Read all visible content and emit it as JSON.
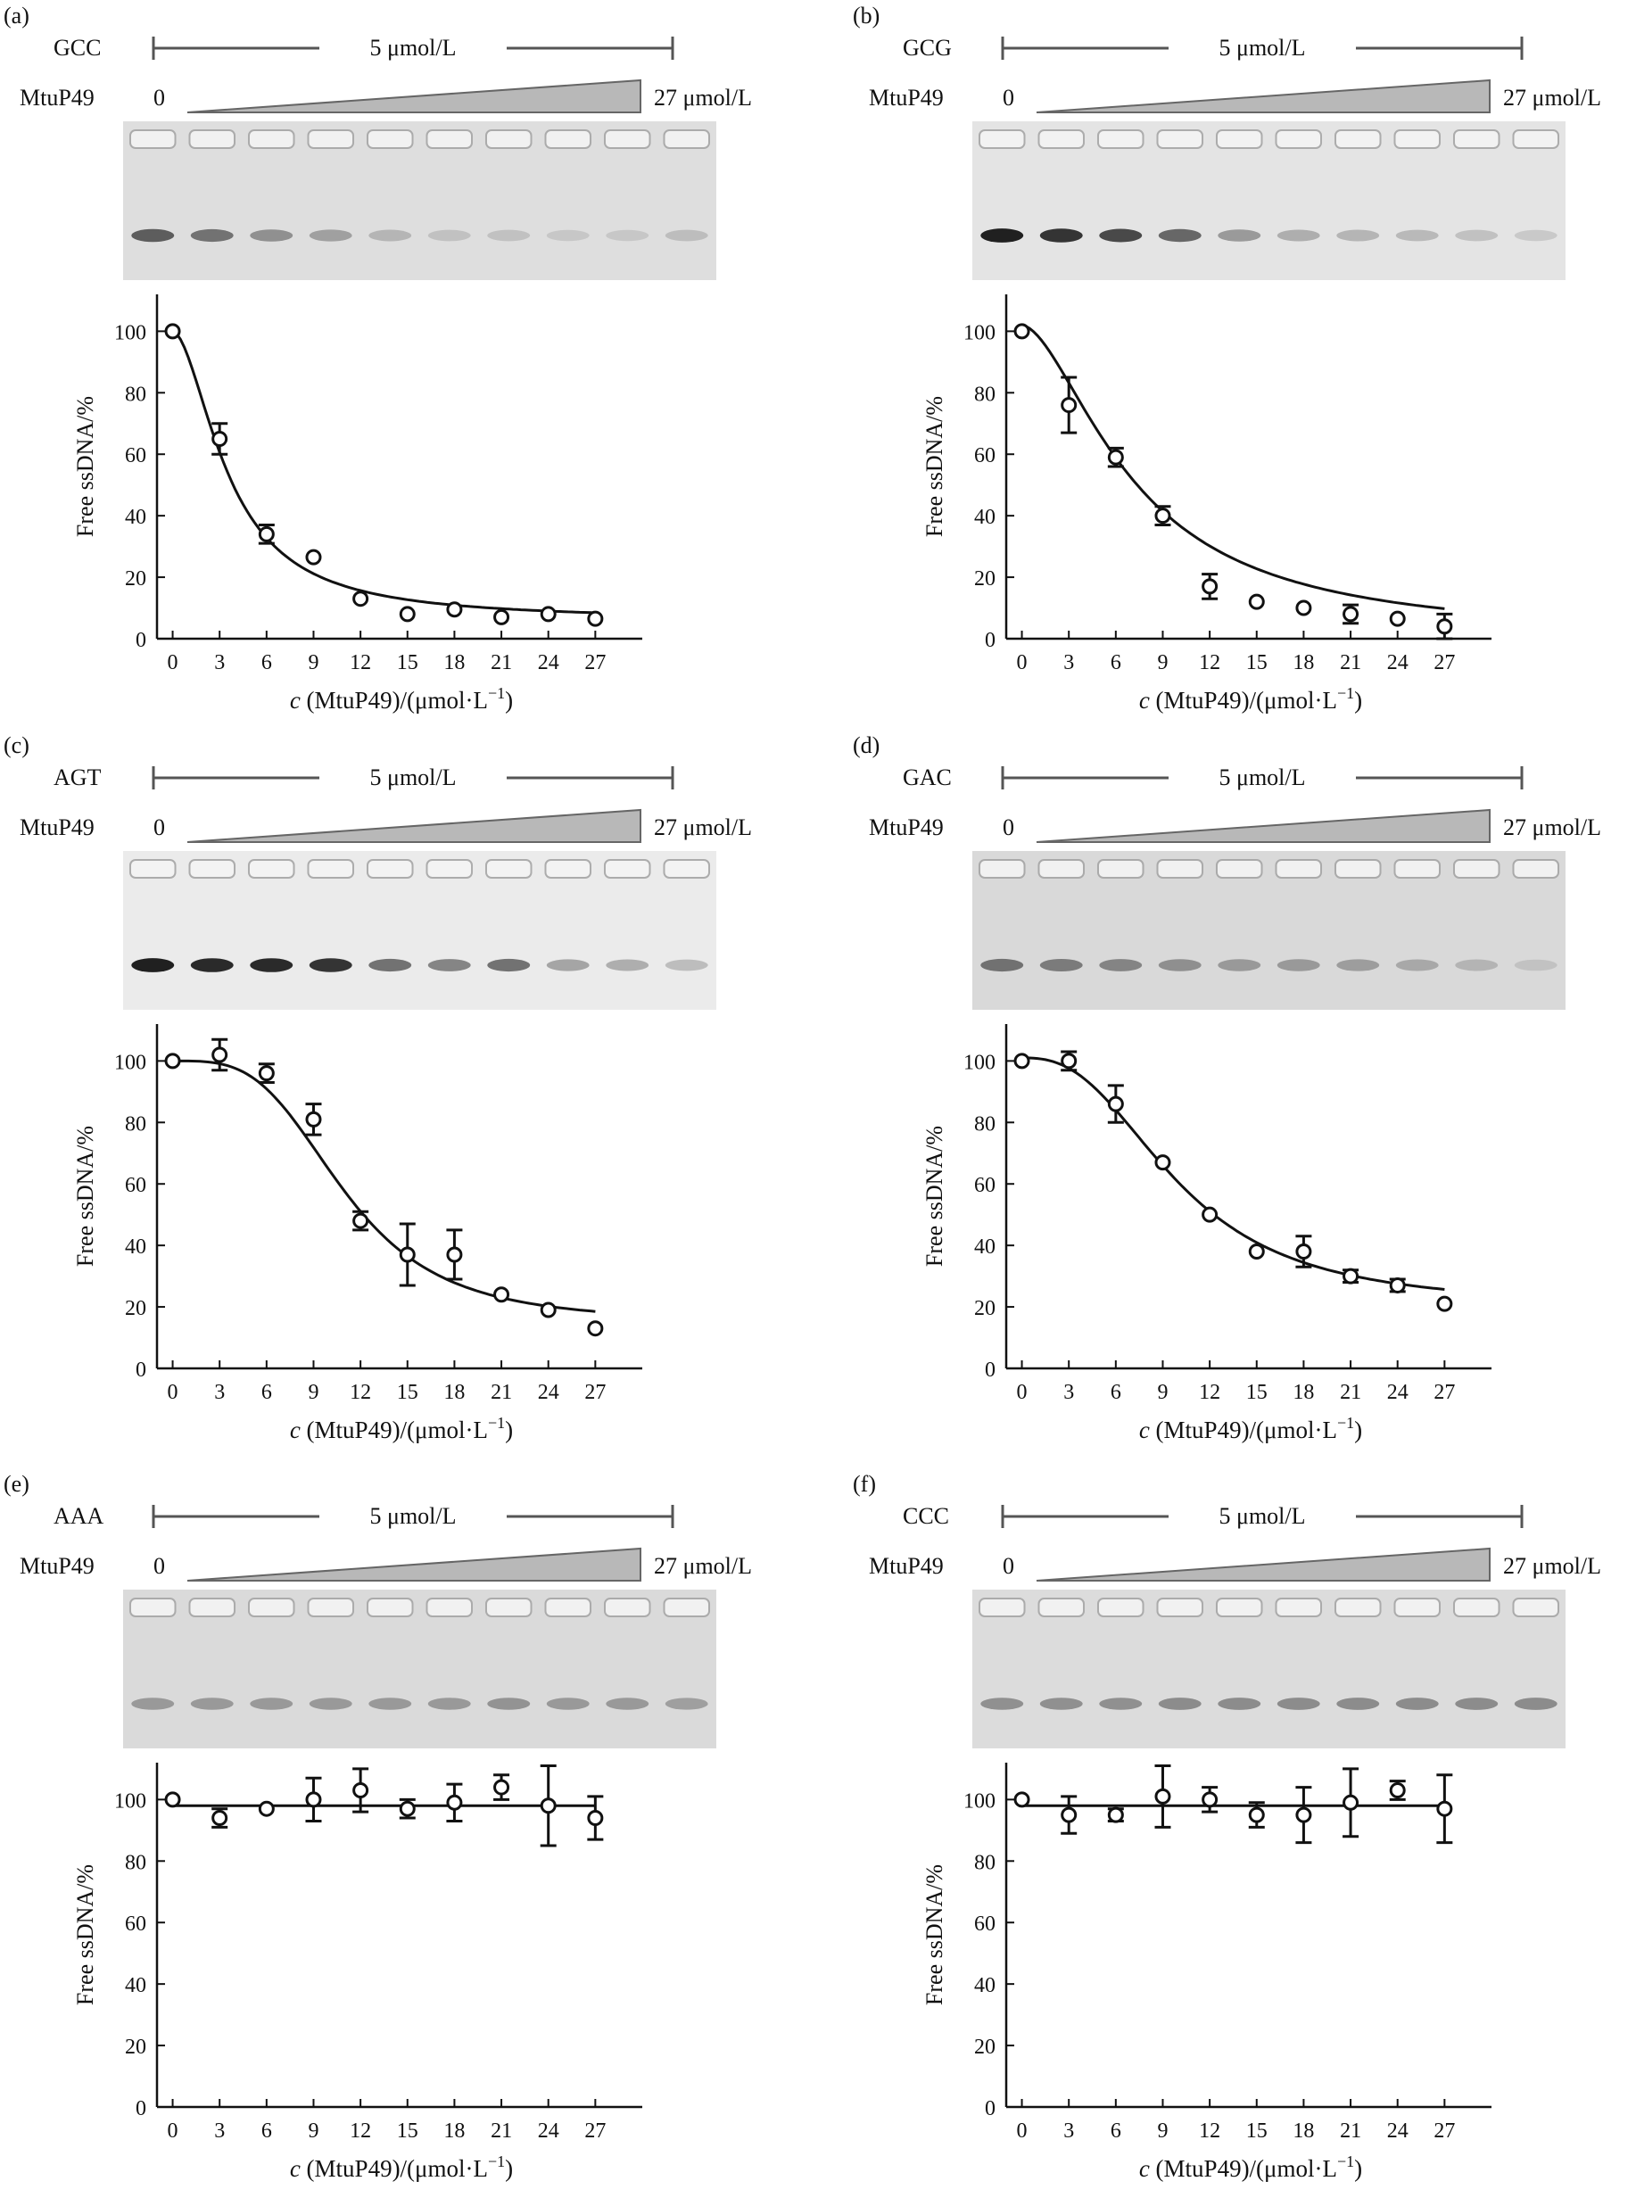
{
  "figure": {
    "common": {
      "label_prefix": "MtuP49",
      "conc_label": "5 μmol/L",
      "start_label": "0",
      "end_label": "27 μmol/L",
      "xlabel_var": "c",
      "xlabel_rest": " (MtuP49)/(μmol·L",
      "xlabel_sup": "−1",
      "xlabel_close": ")",
      "ylabel": "Free ssDNA/%"
    },
    "colors": {
      "gel_bg": "#e4e4e4",
      "wedge": "#b8b8b8",
      "bracket": "#555555",
      "curve": "#111111"
    }
  },
  "chart_data": [
    {
      "panel": "(a)",
      "seq": "GCC",
      "type": "scatter",
      "x": [
        0,
        3,
        6,
        9,
        12,
        15,
        18,
        21,
        24,
        27
      ],
      "y": [
        100,
        65,
        34,
        26.5,
        13,
        8,
        9.5,
        7,
        8,
        6.5
      ],
      "err": [
        0,
        5,
        3,
        0,
        0,
        0,
        0,
        0,
        0,
        0
      ],
      "fit": {
        "bottom": 6,
        "top": 100,
        "ec50": 3.6,
        "hill": 1.8
      },
      "gel": {
        "bands": [
          0.65,
          0.55,
          0.4,
          0.32,
          0.22,
          0.16,
          0.16,
          0.13,
          0.13,
          0.18
        ],
        "bg": "#dedede"
      },
      "xticks": [
        0,
        3,
        6,
        9,
        12,
        15,
        18,
        21,
        24,
        27
      ],
      "yticks": [
        0,
        20,
        40,
        60,
        80,
        100
      ],
      "ylim": [
        0,
        112
      ],
      "xlim": [
        -1,
        30
      ]
    },
    {
      "panel": "(b)",
      "seq": "GCG",
      "type": "scatter",
      "x": [
        0,
        3,
        6,
        9,
        12,
        15,
        18,
        21,
        24,
        27
      ],
      "y": [
        100,
        76,
        59,
        40,
        17,
        12,
        10,
        8,
        6.5,
        4
      ],
      "err": [
        0,
        9,
        3,
        3,
        4,
        0,
        0,
        3,
        0,
        4
      ],
      "fit": {
        "bottom": 0,
        "top": 102,
        "ec50": 7.2,
        "hill": 1.7
      },
      "gel": {
        "bands": [
          0.95,
          0.85,
          0.75,
          0.6,
          0.35,
          0.25,
          0.22,
          0.2,
          0.16,
          0.12
        ],
        "bg": "#e4e4e4"
      },
      "xticks": [
        0,
        3,
        6,
        9,
        12,
        15,
        18,
        21,
        24,
        27
      ],
      "yticks": [
        0,
        20,
        40,
        60,
        80,
        100
      ],
      "ylim": [
        0,
        112
      ],
      "xlim": [
        -1,
        30
      ]
    },
    {
      "panel": "(c)",
      "seq": "AGT",
      "type": "scatter",
      "x": [
        0,
        3,
        6,
        9,
        12,
        15,
        18,
        21,
        24,
        27
      ],
      "y": [
        100,
        102,
        96,
        81,
        48,
        37,
        37,
        24,
        19,
        13
      ],
      "err": [
        0,
        5,
        3,
        5,
        3,
        10,
        8,
        0,
        0,
        0
      ],
      "fit": {
        "bottom": 15,
        "top": 100,
        "ec50": 11,
        "hill": 3.5
      },
      "gel": {
        "bands": [
          0.95,
          0.9,
          0.9,
          0.85,
          0.55,
          0.45,
          0.55,
          0.3,
          0.25,
          0.18
        ],
        "bg": "#ebebeb"
      },
      "xticks": [
        0,
        3,
        6,
        9,
        12,
        15,
        18,
        21,
        24,
        27
      ],
      "yticks": [
        0,
        20,
        40,
        60,
        80,
        100
      ],
      "ylim": [
        0,
        112
      ],
      "xlim": [
        -1,
        30
      ]
    },
    {
      "panel": "(d)",
      "seq": "GAC",
      "type": "scatter",
      "x": [
        0,
        3,
        6,
        9,
        12,
        15,
        18,
        21,
        24,
        27
      ],
      "y": [
        100,
        100,
        86,
        67,
        50,
        38,
        38,
        30,
        27,
        21
      ],
      "err": [
        0,
        3,
        6,
        0,
        0,
        0,
        5,
        2,
        2,
        0
      ],
      "fit": {
        "bottom": 20,
        "top": 101,
        "ec50": 10,
        "hill": 2.6
      },
      "gel": {
        "bands": [
          0.55,
          0.5,
          0.45,
          0.4,
          0.35,
          0.35,
          0.33,
          0.28,
          0.22,
          0.15
        ],
        "bg": "#d9d9d9"
      },
      "xticks": [
        0,
        3,
        6,
        9,
        12,
        15,
        18,
        21,
        24,
        27
      ],
      "yticks": [
        0,
        20,
        40,
        60,
        80,
        100
      ],
      "ylim": [
        0,
        112
      ],
      "xlim": [
        -1,
        30
      ]
    },
    {
      "panel": "(e)",
      "seq": "AAA",
      "type": "scatter",
      "x": [
        0,
        3,
        6,
        9,
        12,
        15,
        18,
        21,
        24,
        27
      ],
      "y": [
        100,
        94,
        97,
        100,
        103,
        97,
        99,
        104,
        98,
        94
      ],
      "err": [
        0,
        3,
        0,
        7,
        7,
        3,
        6,
        4,
        13,
        7
      ],
      "fit": {
        "flat": 98
      },
      "gel": {
        "bands": [
          0.35,
          0.35,
          0.35,
          0.35,
          0.35,
          0.35,
          0.38,
          0.35,
          0.35,
          0.32
        ],
        "bg": "#dadada"
      },
      "xticks": [
        0,
        3,
        6,
        9,
        12,
        15,
        18,
        21,
        24,
        27
      ],
      "yticks": [
        0,
        20,
        40,
        60,
        80,
        100
      ],
      "ylim": [
        0,
        112
      ],
      "xlim": [
        -1,
        30
      ]
    },
    {
      "panel": "(f)",
      "seq": "CCC",
      "type": "scatter",
      "x": [
        0,
        3,
        6,
        9,
        12,
        15,
        18,
        21,
        24,
        27
      ],
      "y": [
        100,
        95,
        95,
        101,
        100,
        95,
        95,
        99,
        103,
        97
      ],
      "err": [
        0,
        6,
        2,
        10,
        4,
        4,
        9,
        11,
        3,
        11
      ],
      "fit": {
        "flat": 98
      },
      "gel": {
        "bands": [
          0.4,
          0.4,
          0.4,
          0.42,
          0.42,
          0.42,
          0.42,
          0.42,
          0.42,
          0.42
        ],
        "bg": "#dcdcdc"
      },
      "xticks": [
        0,
        3,
        6,
        9,
        12,
        15,
        18,
        21,
        24,
        27
      ],
      "yticks": [
        0,
        20,
        40,
        60,
        80,
        100
      ],
      "ylim": [
        0,
        112
      ],
      "xlim": [
        -1,
        30
      ]
    }
  ]
}
